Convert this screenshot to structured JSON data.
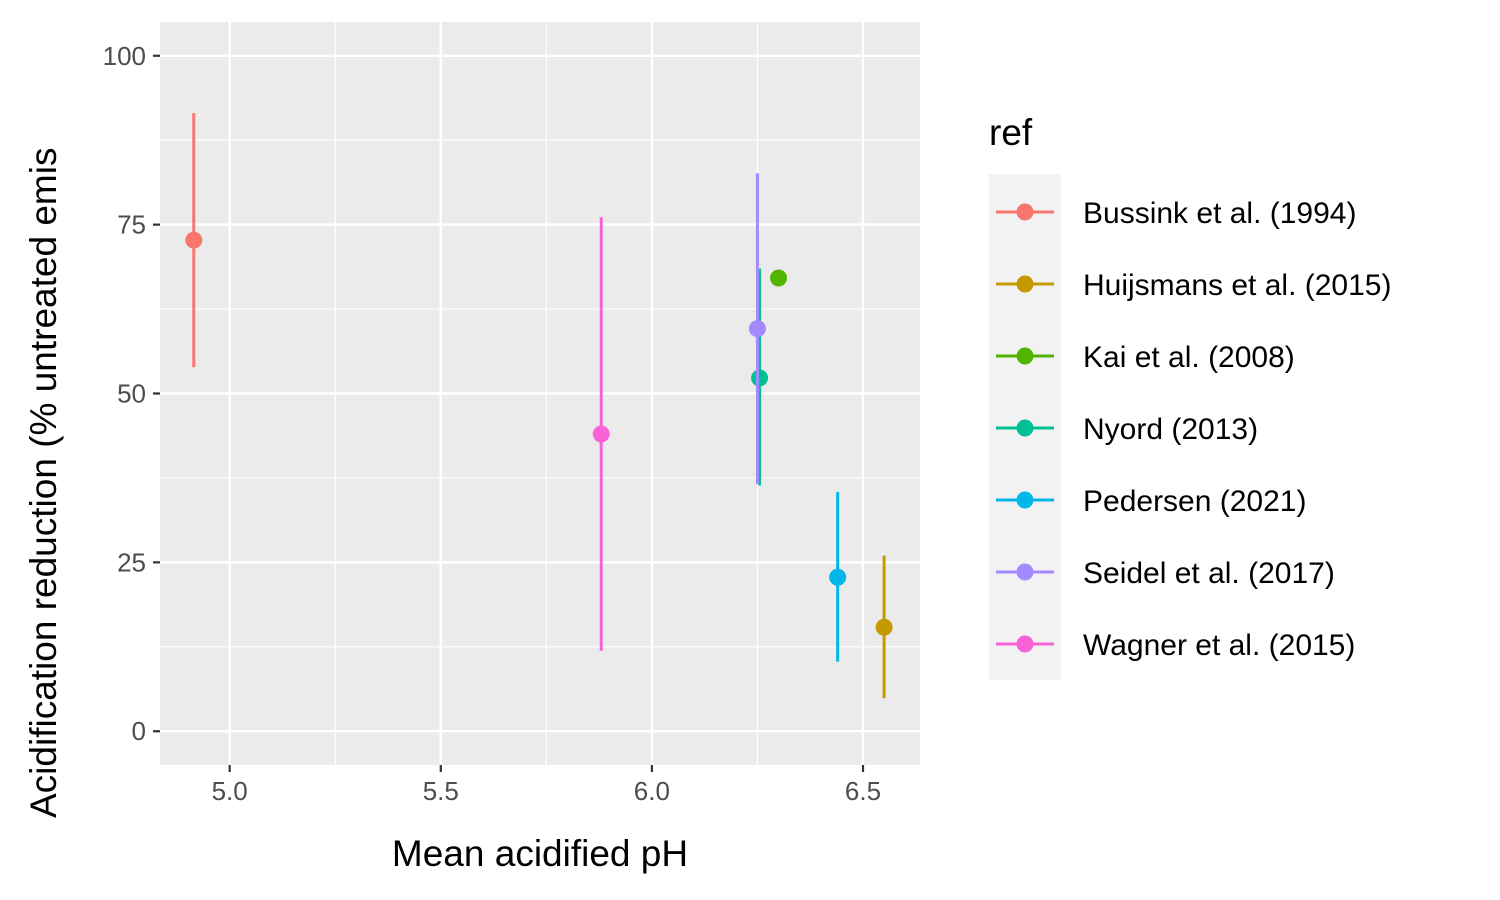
{
  "chart_data": {
    "type": "scatter",
    "title": "",
    "xlabel": "Mean acidified pH",
    "ylabel": "Acidification reduction (% untreated emis",
    "xlim": [
      4.835,
      6.635
    ],
    "ylim": [
      -5,
      105
    ],
    "x_ticks": [
      {
        "value": 5.0,
        "label": "5.0"
      },
      {
        "value": 5.5,
        "label": "5.5"
      },
      {
        "value": 6.0,
        "label": "6.0"
      },
      {
        "value": 6.5,
        "label": "6.5"
      }
    ],
    "y_ticks": [
      {
        "value": 0,
        "label": "0"
      },
      {
        "value": 25,
        "label": "25"
      },
      {
        "value": 50,
        "label": "50"
      },
      {
        "value": 75,
        "label": "75"
      },
      {
        "value": 100,
        "label": "100"
      }
    ],
    "grid": true,
    "legend": {
      "title": "ref",
      "position": "right"
    },
    "series": [
      {
        "name": "Bussink et al. (1994)",
        "color": "#F8766D",
        "x": 4.915,
        "y": 72.7,
        "ymin": 53.9,
        "ymax": 91.5
      },
      {
        "name": "Huijsmans et al. (2015)",
        "color": "#C49A00",
        "x": 6.55,
        "y": 15.4,
        "ymin": 4.9,
        "ymax": 26.0
      },
      {
        "name": "Kai et al. (2008)",
        "color": "#53B400",
        "x": 6.3,
        "y": 67.1,
        "ymin": null,
        "ymax": null
      },
      {
        "name": "Nyord (2013)",
        "color": "#00C094",
        "x": 6.255,
        "y": 52.3,
        "ymin": 36.4,
        "ymax": 68.5
      },
      {
        "name": "Pedersen (2021)",
        "color": "#00B6EB",
        "x": 6.44,
        "y": 22.8,
        "ymin": 10.3,
        "ymax": 35.4
      },
      {
        "name": "Seidel et al. (2017)",
        "color": "#A58AFF",
        "x": 6.25,
        "y": 59.6,
        "ymin": 36.6,
        "ymax": 82.6
      },
      {
        "name": "Wagner et al. (2015)",
        "color": "#FB61D7",
        "x": 5.88,
        "y": 44.0,
        "ymin": 11.9,
        "ymax": 76.1
      }
    ]
  }
}
